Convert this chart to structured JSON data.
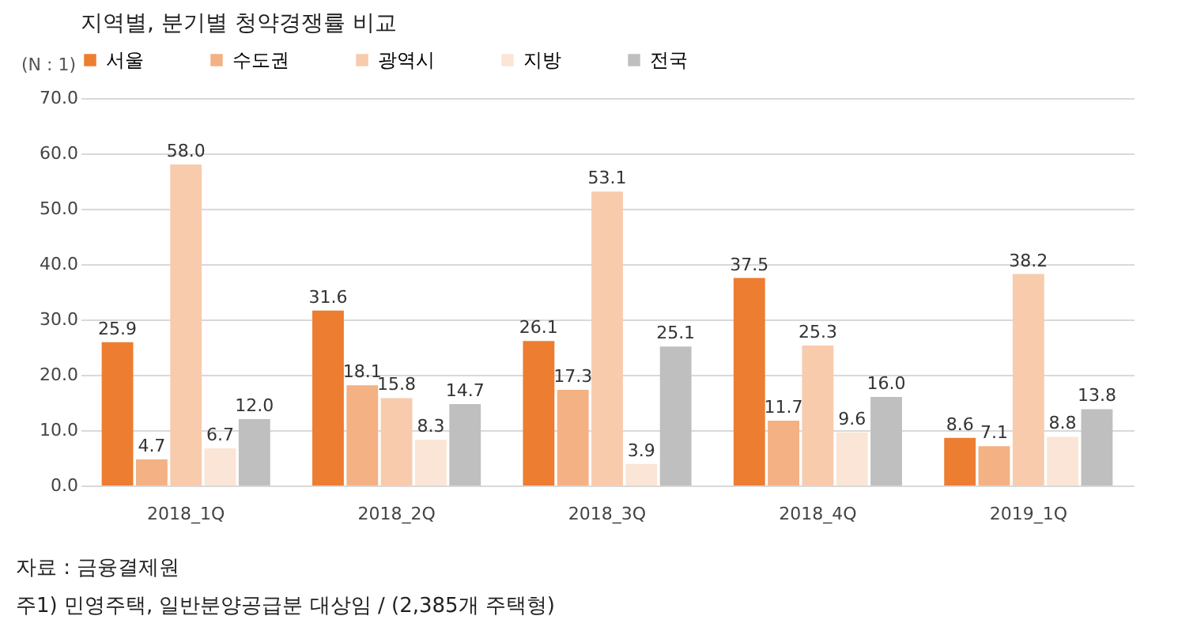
{
  "chart_data": {
    "type": "bar",
    "title": "지역별, 분기별 청약경쟁률 비교",
    "ylabel": "(N : 1)",
    "categories": [
      "2018_1Q",
      "2018_2Q",
      "2018_3Q",
      "2018_4Q",
      "2019_1Q"
    ],
    "series": [
      {
        "name": "서울",
        "color": "#ed7d31",
        "values": [
          25.9,
          31.6,
          26.1,
          37.5,
          8.6
        ],
        "value_labels": [
          "25.9",
          "31.6",
          "26.1",
          "37.5",
          "8.6"
        ]
      },
      {
        "name": "수도권",
        "color": "#f4b183",
        "values": [
          4.7,
          18.1,
          17.3,
          11.7,
          7.1
        ],
        "value_labels": [
          "4.7",
          "18.1",
          "17.3",
          "11.7",
          "7.1"
        ]
      },
      {
        "name": "광역시",
        "color": "#f8cbad",
        "values": [
          58.0,
          15.8,
          53.1,
          25.3,
          38.2
        ],
        "value_labels": [
          "58.0",
          "15.8",
          "53.1",
          "25.3",
          "38.2"
        ]
      },
      {
        "name": "지방",
        "color": "#fbe5d6",
        "values": [
          6.7,
          8.3,
          3.9,
          9.6,
          8.8
        ],
        "value_labels": [
          "6.7",
          "8.3",
          "3.9",
          "9.6",
          "8.8"
        ]
      },
      {
        "name": "전국",
        "color": "#bfbfbf",
        "values": [
          12.0,
          14.7,
          25.1,
          16.0,
          13.8
        ],
        "value_labels": [
          "12.0",
          "14.7",
          "25.1",
          "16.0",
          "13.8"
        ]
      }
    ],
    "ylim": [
      0,
      70
    ],
    "yticks": [
      {
        "value": 0,
        "label": "0.0"
      },
      {
        "value": 10,
        "label": "10.0"
      },
      {
        "value": 20,
        "label": "20.0"
      },
      {
        "value": 30,
        "label": "30.0"
      },
      {
        "value": 40,
        "label": "40.0"
      },
      {
        "value": 50,
        "label": "50.0"
      },
      {
        "value": 60,
        "label": "60.0"
      },
      {
        "value": 70,
        "label": "70.0"
      }
    ],
    "grid": "y",
    "legend": "top",
    "annotations": [
      "자료 : 금융결제원",
      "주1) 민영주택, 일반분양공급분 대상임 / (2,385개 주택형)"
    ]
  }
}
